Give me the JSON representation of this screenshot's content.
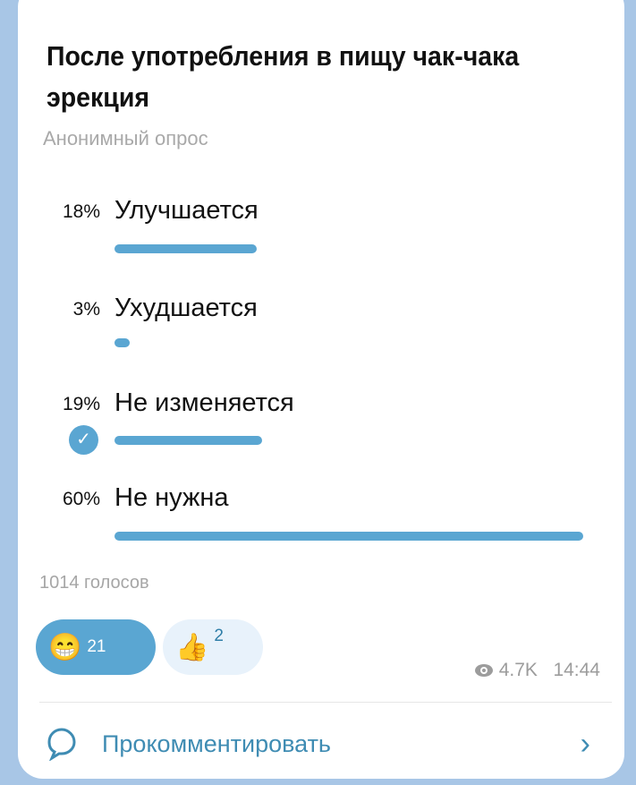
{
  "poll": {
    "question": "После употребления в пищу чак-чака эрекция",
    "type_label": "Анонимный опрос",
    "options": [
      {
        "percent_label": "18%",
        "label": "Улучшается",
        "percent": 18,
        "selected": false
      },
      {
        "percent_label": "3%",
        "label": "Ухудшается",
        "percent": 3,
        "selected": false
      },
      {
        "percent_label": "19%",
        "label": "Не изменяется",
        "percent": 19,
        "selected": true
      },
      {
        "percent_label": "60%",
        "label": "Не нужна",
        "percent": 60,
        "selected": false
      }
    ],
    "votes_label": "1014 голосов"
  },
  "reactions": [
    {
      "icon": "grinning-face-emoji",
      "emoji": "😁",
      "count": "21",
      "active": true
    },
    {
      "icon": "thumbs-up-emoji",
      "emoji": "👍",
      "count": "2",
      "active": false
    }
  ],
  "meta": {
    "views": "4.7K",
    "time": "14:44"
  },
  "comment": {
    "label": "Прокомментировать",
    "chevron": "›"
  },
  "colors": {
    "accent": "#5aa6d2",
    "link": "#3f8cb3",
    "background": "#a8c6e6"
  }
}
